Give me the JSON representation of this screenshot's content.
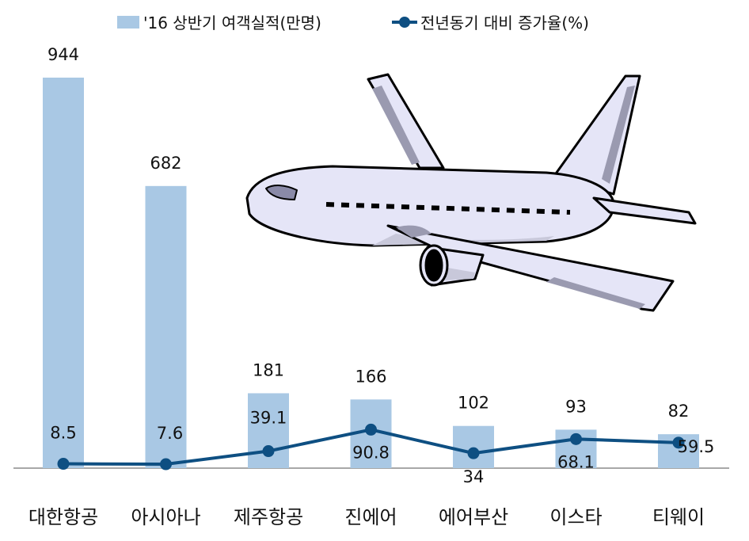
{
  "chart_data": {
    "type": "bar",
    "categories": [
      "대한항공",
      "아시아나",
      "제주항공",
      "진에어",
      "에어부산",
      "이스타",
      "티웨이"
    ],
    "series": [
      {
        "name": "'16 상반기 여객실적(만명)",
        "type": "bar",
        "values": [
          944,
          682,
          181,
          166,
          102,
          93,
          82
        ]
      },
      {
        "name": "전년동기 대비 증가율(%)",
        "type": "line",
        "values": [
          8.5,
          7.6,
          39.1,
          90.8,
          34,
          68.1,
          59.5
        ]
      }
    ],
    "colors": {
      "bar": "#a9c8e4",
      "line": "#0e4f82",
      "axis": "#8c8c8c"
    },
    "legend_position": "top",
    "grid": false,
    "illustration": "airplane-icon"
  }
}
